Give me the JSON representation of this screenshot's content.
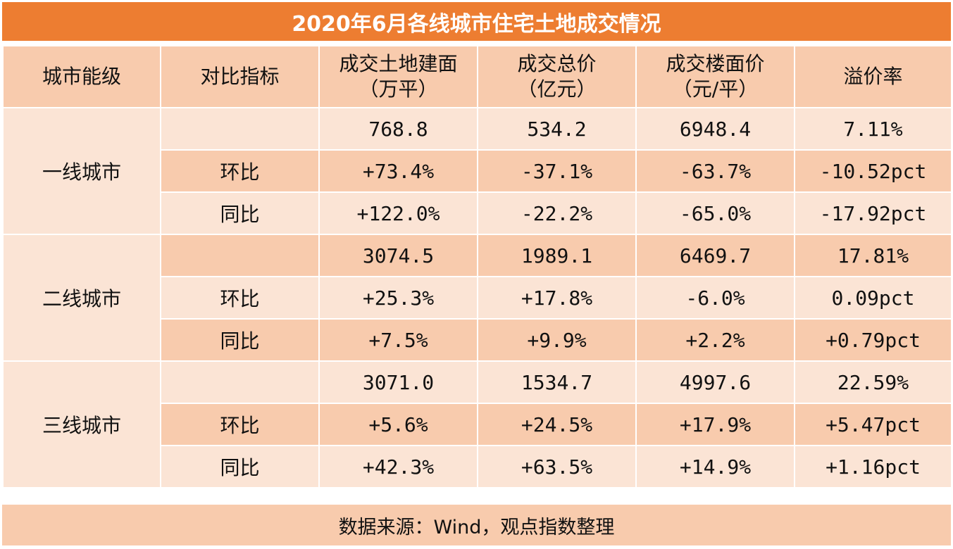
{
  "title": "2020年6月各线城市住宅土地成交情况",
  "headers": {
    "level": "城市能级",
    "indicator": "对比指标",
    "area_line1": "成交土地建面",
    "area_line2": "（万平）",
    "price_line1": "成交总价",
    "price_line2": "（亿元）",
    "floor_line1": "成交楼面价",
    "floor_line2": "（元/平）",
    "premium": "溢价率"
  },
  "groups": [
    {
      "city": "一线城市",
      "rows": [
        {
          "indicator": "",
          "area": "768.8",
          "price": "534.2",
          "floor": "6948.4",
          "premium": "7.11%"
        },
        {
          "indicator": "环比",
          "area": "+73.4%",
          "price": "-37.1%",
          "floor": "-63.7%",
          "premium": "-10.52pct"
        },
        {
          "indicator": "同比",
          "area": "+122.0%",
          "price": "-22.2%",
          "floor": "-65.0%",
          "premium": "-17.92pct"
        }
      ]
    },
    {
      "city": "二线城市",
      "rows": [
        {
          "indicator": "",
          "area": "3074.5",
          "price": "1989.1",
          "floor": "6469.7",
          "premium": "17.81%"
        },
        {
          "indicator": "环比",
          "area": "+25.3%",
          "price": "+17.8%",
          "floor": "-6.0%",
          "premium": "0.09pct"
        },
        {
          "indicator": "同比",
          "area": "+7.5%",
          "price": "+9.9%",
          "floor": "+2.2%",
          "premium": "+0.79pct"
        }
      ]
    },
    {
      "city": "三线城市",
      "rows": [
        {
          "indicator": "",
          "area": "3071.0",
          "price": "1534.7",
          "floor": "4997.6",
          "premium": "22.59%"
        },
        {
          "indicator": "环比",
          "area": "+5.6%",
          "price": "+24.5%",
          "floor": "+17.9%",
          "premium": "+5.47pct"
        },
        {
          "indicator": "同比",
          "area": "+42.3%",
          "price": "+63.5%",
          "floor": "+14.9%",
          "premium": "+1.16pct"
        }
      ]
    }
  ],
  "footer": "数据来源：Wind，观点指数整理",
  "colors": {
    "title_bg": "#ed7d31",
    "header_bg": "#f8cbad",
    "row_light": "#fbe4d5",
    "row_dark": "#f8cbad"
  }
}
